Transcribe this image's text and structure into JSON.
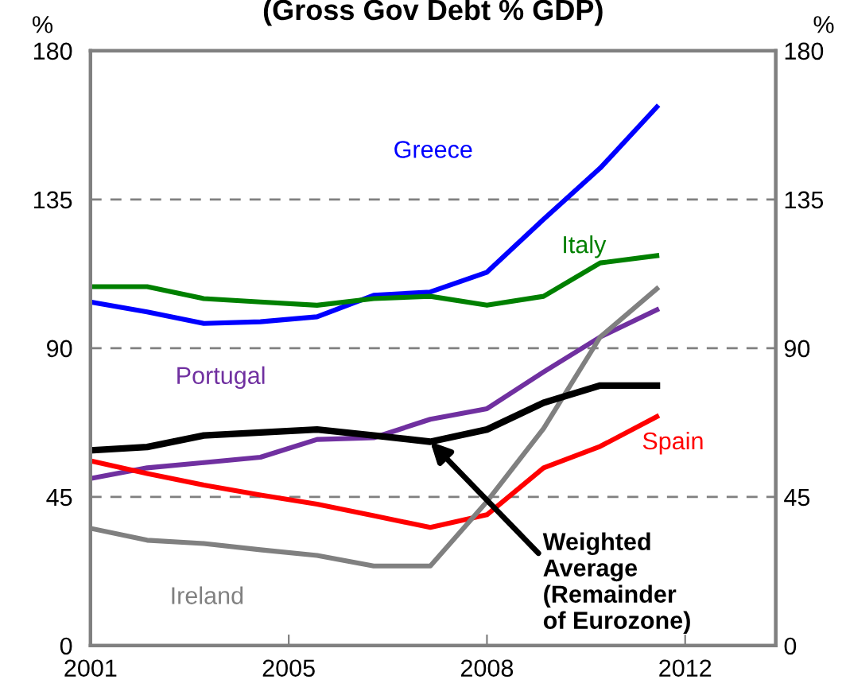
{
  "chart_data": {
    "type": "line",
    "title": "(Gross Gov Debt % GDP)",
    "ylabel": "%",
    "y2label": "%",
    "x": [
      2001,
      2002,
      2003,
      2004,
      2005,
      2006,
      2007,
      2008,
      2009,
      2010,
      2011
    ],
    "xlim": [
      2001,
      2013.1
    ],
    "xticks": [
      {
        "value": 2001,
        "label": "2001"
      },
      {
        "value": 2004.5,
        "label": "2005"
      },
      {
        "value": 2008,
        "label": "2008"
      },
      {
        "value": 2011.5,
        "label": "2012"
      }
    ],
    "ylim": [
      0,
      180
    ],
    "yticks": [
      0,
      45,
      90,
      135,
      180
    ],
    "y2lim": [
      0,
      180
    ],
    "y2ticks": [
      0,
      45,
      90,
      135,
      180
    ],
    "grid": "y",
    "legend": false,
    "series": [
      {
        "name": "Greece",
        "color": "#0000ff",
        "values": [
          104,
          101,
          97.5,
          98,
          99.5,
          106,
          107,
          113,
          129,
          144.5,
          163
        ]
      },
      {
        "name": "Italy",
        "color": "#008000",
        "values": [
          108.6,
          108.6,
          105,
          104,
          103,
          105,
          105.7,
          103,
          105.7,
          115.8,
          118
        ]
      },
      {
        "name": "Portugal",
        "color": "#7030a0",
        "values": [
          50.6,
          53.8,
          55.4,
          57,
          62.4,
          62.9,
          68.5,
          71.7,
          82.8,
          93.4,
          101.6
        ]
      },
      {
        "name": "Spain",
        "color": "#ff0000",
        "values": [
          55.9,
          52.1,
          48.6,
          45.6,
          42.8,
          39.3,
          35.8,
          39.6,
          53.8,
          60.3,
          69.3
        ]
      },
      {
        "name": "Ireland",
        "color": "#808080",
        "values": [
          35.5,
          31.9,
          30.9,
          29,
          27.3,
          24.1,
          24.1,
          43.6,
          65.7,
          93.4,
          108
        ]
      },
      {
        "color": "#000000",
        "values": [
          59.1,
          60.1,
          63.6,
          64.5,
          65.4,
          63.6,
          61.7,
          65.4,
          73.5,
          78.7,
          78.7
        ]
      }
    ],
    "annotations": [
      {
        "text": "Weighted\nAverage\n(Remainder\nof Eurozone)",
        "x": 2007,
        "y": 61.7
      }
    ]
  }
}
